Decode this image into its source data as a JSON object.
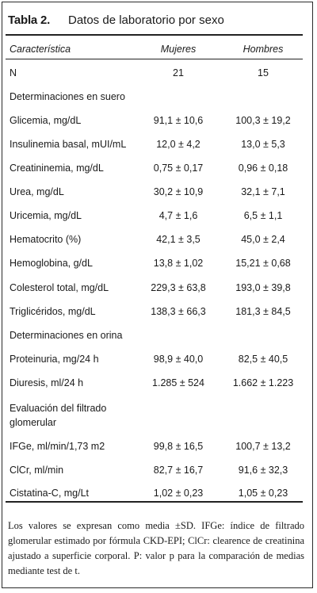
{
  "title": {
    "label": "Tabla 2.",
    "text": "Datos de laboratorio por sexo"
  },
  "columns": {
    "characteristic": "Característica",
    "women": "Mujeres",
    "men": "Hombres"
  },
  "rows": [
    {
      "label": "N",
      "women": "21",
      "men": "15"
    },
    {
      "label": "Determinaciones en suero",
      "women": "",
      "men": ""
    },
    {
      "label": "Glicemia, mg/dL",
      "women": "91,1 ± 10,6",
      "men": "100,3 ± 19,2"
    },
    {
      "label": "Insulinemia basal,  mUI/mL",
      "women": "12,0 ± 4,2",
      "men": "13,0 ± 5,3"
    },
    {
      "label": "Creatininemia, mg/dL",
      "women": "0,75 ± 0,17",
      "men": "0,96 ± 0,18"
    },
    {
      "label": "Urea, mg/dL",
      "women": "30,2 ± 10,9",
      "men": "32,1 ± 7,1"
    },
    {
      "label": "Uricemia, mg/dL",
      "women": "4,7 ± 1,6",
      "men": "6,5 ± 1,1"
    },
    {
      "label": "Hematocrito (%)",
      "women": "42,1 ± 3,5",
      "men": "45,0 ± 2,4"
    },
    {
      "label": "Hemoglobina, g/dL",
      "women": "13,8 ± 1,02",
      "men": "15,21 ± 0,68"
    },
    {
      "label": "Colesterol total, mg/dL",
      "women": "229,3 ± 63,8",
      "men": "193,0 ± 39,8"
    },
    {
      "label": "Triglicéridos, mg/dL",
      "women": "138,3 ± 66,3",
      "men": "181,3 ± 84,5"
    },
    {
      "label": "Determinaciones en orina",
      "women": "",
      "men": ""
    },
    {
      "label": "Proteinuria, mg/24 h",
      "women": "98,9 ± 40,0",
      "men": "82,5 ± 40,5"
    },
    {
      "label": "Diuresis, ml/24 h",
      "women": "1.285 ± 524",
      "men": "1.662 ± 1.223"
    },
    {
      "label": "Evaluación del filtrado",
      "women": "",
      "men": ""
    },
    {
      "label": "glomerular",
      "women": "",
      "men": ""
    },
    {
      "label": "IFGe, ml/min/1,73 m2",
      "women": "99,8 ± 16,5",
      "men": "100,7 ± 13,2"
    },
    {
      "label": "ClCr, ml/min",
      "women": "82,7 ± 16,7",
      "men": "91,6 ± 32,3"
    },
    {
      "label": "Cistatina-C, mg/Lt",
      "women": "1,02 ± 0,23",
      "men": "1,05 ± 0,23"
    }
  ],
  "footnote": "Los valores se expresan como media ±SD. IFGe: índice de filtrado glomerular estimado por fórmula CKD-EPI; ClCr: clearence de creatinina ajustado a superficie corporal. P: valor p para la comparación de medias mediante test de t."
}
